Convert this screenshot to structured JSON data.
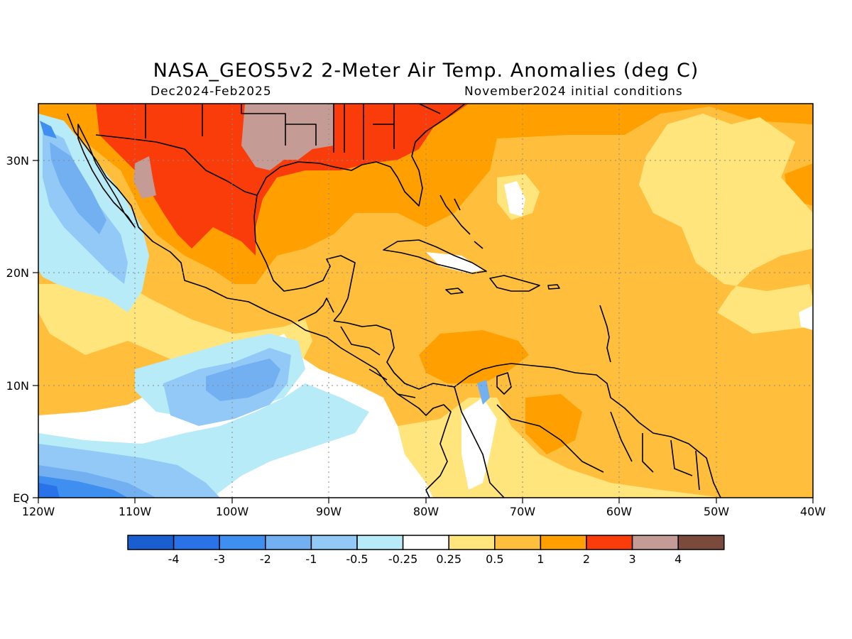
{
  "title": "NASA_GEOS5v2 2-Meter Air Temp. Anomalies (deg C)",
  "period": "Dec2024-Feb2025",
  "initial_conditions": "November2024 initial conditions",
  "lat_labels": [
    "30N",
    "20N",
    "10N",
    "EQ"
  ],
  "lon_labels": [
    "120W",
    "110W",
    "100W",
    "90W",
    "80W",
    "70W",
    "60W",
    "50W",
    "40W"
  ],
  "colorbar": {
    "colors": [
      "#1a5fd1",
      "#2a72e8",
      "#3e8ff0",
      "#72b0f2",
      "#93c9f7",
      "#b7ebf8",
      "#ffffff",
      "#ffe57c",
      "#ffbf3c",
      "#ffa000",
      "#fa3c0a",
      "#c59c95",
      "#7a4a3c"
    ],
    "labels": [
      "-4",
      "-3",
      "-2",
      "-1",
      "-0.5",
      "-0.25",
      "0.25",
      "0.5",
      "1",
      "2",
      "3",
      "4"
    ]
  },
  "colors": {
    "warm_1": "#ffbf3c",
    "warm_2": "#ffa000",
    "warm_3": "#fa3c0a",
    "warm_4": "#c59c95",
    "cool_1": "#b7ebf8",
    "cool_2": "#93c9f7",
    "cool_3": "#72b0f2",
    "cool_4": "#3e8ff0",
    "cool_5": "#2a72e8",
    "neutral": "#ffffff",
    "warm_0": "#ffe57c"
  }
}
